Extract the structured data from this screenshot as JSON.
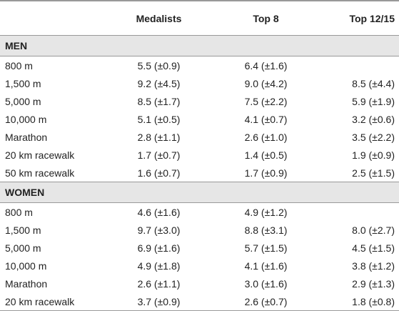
{
  "table": {
    "columns": [
      "Medalists",
      "Top 8",
      "Top 12/15"
    ],
    "sections": [
      {
        "title": "MEN",
        "rows": [
          {
            "label": "800 m",
            "cells": [
              "5.5 (±0.9)",
              "6.4 (±1.6)",
              null
            ]
          },
          {
            "label": "1,500 m",
            "cells": [
              "9.2 (±4.5)",
              "9.0 (±4.2)",
              "8.5 (±4.4)"
            ]
          },
          {
            "label": "5,000 m",
            "cells": [
              "8.5 (±1.7)",
              "7.5 (±2.2)",
              "5.9 (±1.9)"
            ]
          },
          {
            "label": "10,000 m",
            "cells": [
              "5.1 (±0.5)",
              "4.1 (±0.7)",
              "3.2 (±0.6)"
            ]
          },
          {
            "label": "Marathon",
            "cells": [
              "2.8 (±1.1)",
              "2.6 (±1.0)",
              "3.5 (±2.2)"
            ]
          },
          {
            "label": "20 km racewalk",
            "cells": [
              "1.7 (±0.7)",
              "1.4 (±0.5)",
              "1.9 (±0.9)"
            ]
          },
          {
            "label": "50 km racewalk",
            "cells": [
              "1.6 (±0.7)",
              "1.7 (±0.9)",
              "2.5 (±1.5)"
            ]
          }
        ]
      },
      {
        "title": "WOMEN",
        "rows": [
          {
            "label": "800 m",
            "cells": [
              "4.6 (±1.6)",
              "4.9 (±1.2)",
              null
            ]
          },
          {
            "label": "1,500 m",
            "cells": [
              "9.7 (±3.0)",
              "8.8 (±3.1)",
              "8.0 (±2.7)"
            ]
          },
          {
            "label": "5,000 m",
            "cells": [
              "6.9 (±1.6)",
              "5.7 (±1.5)",
              "4.5 (±1.5)"
            ]
          },
          {
            "label": "10,000 m",
            "cells": [
              "4.9 (±1.8)",
              "4.1 (±1.6)",
              "3.8 (±1.2)"
            ]
          },
          {
            "label": "Marathon",
            "cells": [
              "2.6 (±1.1)",
              "3.0 (±1.6)",
              "2.9 (±1.3)"
            ]
          },
          {
            "label": "20 km racewalk",
            "cells": [
              "3.7 (±0.9)",
              "2.6 (±0.7)",
              "1.8 (±0.8)"
            ]
          }
        ]
      }
    ]
  }
}
